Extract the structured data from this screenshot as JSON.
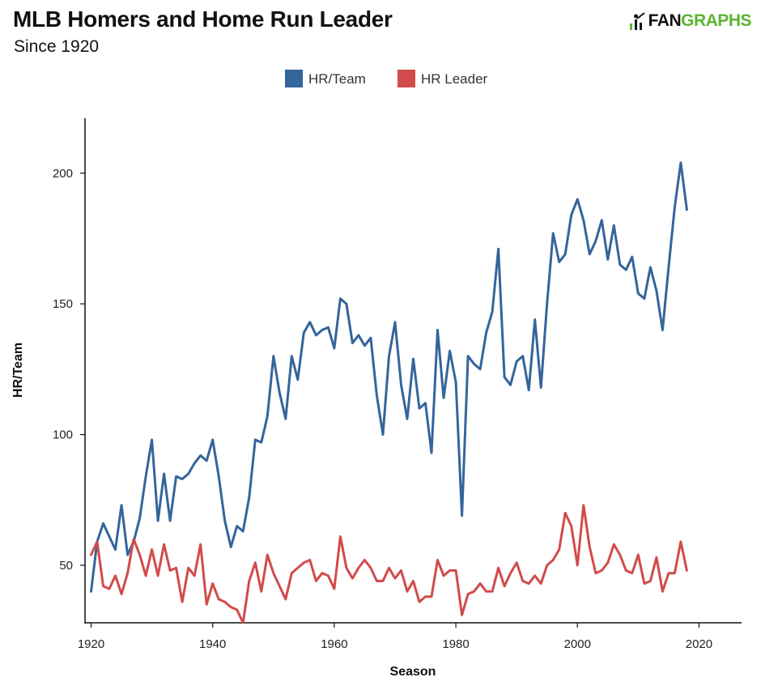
{
  "header": {
    "title": "MLB Homers and Home Run Leader",
    "subtitle": "Since 1920",
    "brand_fan": "FAN",
    "brand_graphs": "GRAPHS",
    "brand_icon": "batter-icon"
  },
  "colors": {
    "hr_team": "#34659b",
    "hr_leader": "#d24b4b",
    "brand_green": "#5cb531"
  },
  "chart_data": {
    "type": "line",
    "title": "MLB Homers and Home Run Leader",
    "subtitle": "Since 1920",
    "xlabel": "Season",
    "ylabel": "HR/Team",
    "xlim": [
      1919,
      2027
    ],
    "ylim": [
      28,
      221
    ],
    "x_ticks": [
      1920,
      1940,
      1960,
      1980,
      2000,
      2020
    ],
    "y_ticks": [
      50,
      100,
      150,
      200
    ],
    "legend_position": "top-center",
    "grid": false,
    "x": [
      1920,
      1921,
      1922,
      1923,
      1924,
      1925,
      1926,
      1927,
      1928,
      1929,
      1930,
      1931,
      1932,
      1933,
      1934,
      1935,
      1936,
      1937,
      1938,
      1939,
      1940,
      1941,
      1942,
      1943,
      1944,
      1945,
      1946,
      1947,
      1948,
      1949,
      1950,
      1951,
      1952,
      1953,
      1954,
      1955,
      1956,
      1957,
      1958,
      1959,
      1960,
      1961,
      1962,
      1963,
      1964,
      1965,
      1966,
      1967,
      1968,
      1969,
      1970,
      1971,
      1972,
      1973,
      1974,
      1975,
      1976,
      1977,
      1978,
      1979,
      1980,
      1981,
      1982,
      1983,
      1984,
      1985,
      1986,
      1987,
      1988,
      1989,
      1990,
      1991,
      1992,
      1993,
      1994,
      1995,
      1996,
      1997,
      1998,
      1999,
      2000,
      2001,
      2002,
      2003,
      2004,
      2005,
      2006,
      2007,
      2008,
      2009,
      2010,
      2011,
      2012,
      2013,
      2014,
      2015,
      2016,
      2017,
      2018
    ],
    "series": [
      {
        "name": "HR/Team",
        "values": [
          40,
          59,
          66,
          61,
          56,
          73,
          54,
          59,
          68,
          84,
          98,
          67,
          85,
          67,
          84,
          83,
          85,
          89,
          92,
          90,
          98,
          84,
          67,
          57,
          65,
          63,
          76,
          98,
          97,
          107,
          130,
          116,
          106,
          130,
          121,
          139,
          143,
          138,
          140,
          141,
          133,
          152,
          150,
          135,
          138,
          134,
          137,
          115,
          100,
          130,
          143,
          119,
          106,
          129,
          110,
          112,
          93,
          140,
          114,
          132,
          120,
          69,
          130,
          127,
          125,
          139,
          147,
          171,
          122,
          119,
          128,
          130,
          117,
          144,
          118,
          150,
          177,
          166,
          169,
          184,
          190,
          182,
          169,
          174,
          182,
          167,
          180,
          165,
          163,
          168,
          154,
          152,
          164,
          155,
          140,
          164,
          187,
          204,
          186
        ]
      },
      {
        "name": "HR Leader",
        "values": [
          54,
          59,
          42,
          41,
          46,
          39,
          47,
          60,
          54,
          46,
          56,
          46,
          58,
          48,
          49,
          36,
          49,
          46,
          58,
          35,
          43,
          37,
          36,
          34,
          33,
          28,
          44,
          51,
          40,
          54,
          47,
          42,
          37,
          47,
          49,
          51,
          52,
          44,
          47,
          46,
          41,
          61,
          49,
          45,
          49,
          52,
          49,
          44,
          44,
          49,
          45,
          48,
          40,
          44,
          36,
          38,
          38,
          52,
          46,
          48,
          48,
          31,
          39,
          40,
          43,
          40,
          40,
          49,
          42,
          47,
          51,
          44,
          43,
          46,
          43,
          50,
          52,
          56,
          70,
          65,
          50,
          73,
          57,
          47,
          48,
          51,
          58,
          54,
          48,
          47,
          54,
          43,
          44,
          53,
          40,
          47,
          47,
          59,
          48
        ]
      }
    ]
  }
}
